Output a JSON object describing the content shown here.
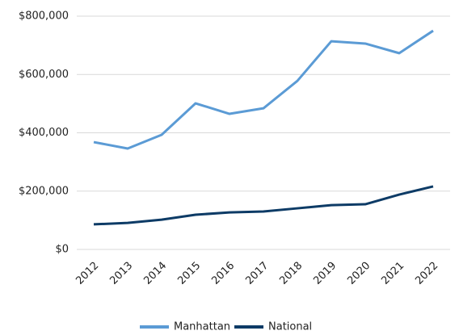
{
  "chart_data": {
    "type": "line",
    "categories": [
      "2012",
      "2013",
      "2014",
      "2015",
      "2016",
      "2017",
      "2018",
      "2019",
      "2020",
      "2021",
      "2022"
    ],
    "series": [
      {
        "name": "Manhattan",
        "color": "#5b9bd5",
        "values": [
          368000,
          346000,
          393000,
          501000,
          465000,
          484000,
          578000,
          714000,
          706000,
          673000,
          750000
        ]
      },
      {
        "name": "National",
        "color": "#0d3b66",
        "values": [
          86000,
          91000,
          102000,
          119000,
          127000,
          130000,
          141000,
          152000,
          155000,
          188000,
          216000
        ]
      }
    ],
    "ylim": [
      0,
      800000
    ],
    "yticks": [
      {
        "value": 0,
        "label": "$0"
      },
      {
        "value": 200000,
        "label": "$200,000"
      },
      {
        "value": 400000,
        "label": "$400,000"
      },
      {
        "value": 600000,
        "label": "$600,000"
      },
      {
        "value": 800000,
        "label": "$800,000"
      }
    ],
    "grid": true,
    "legend": "bottom"
  }
}
